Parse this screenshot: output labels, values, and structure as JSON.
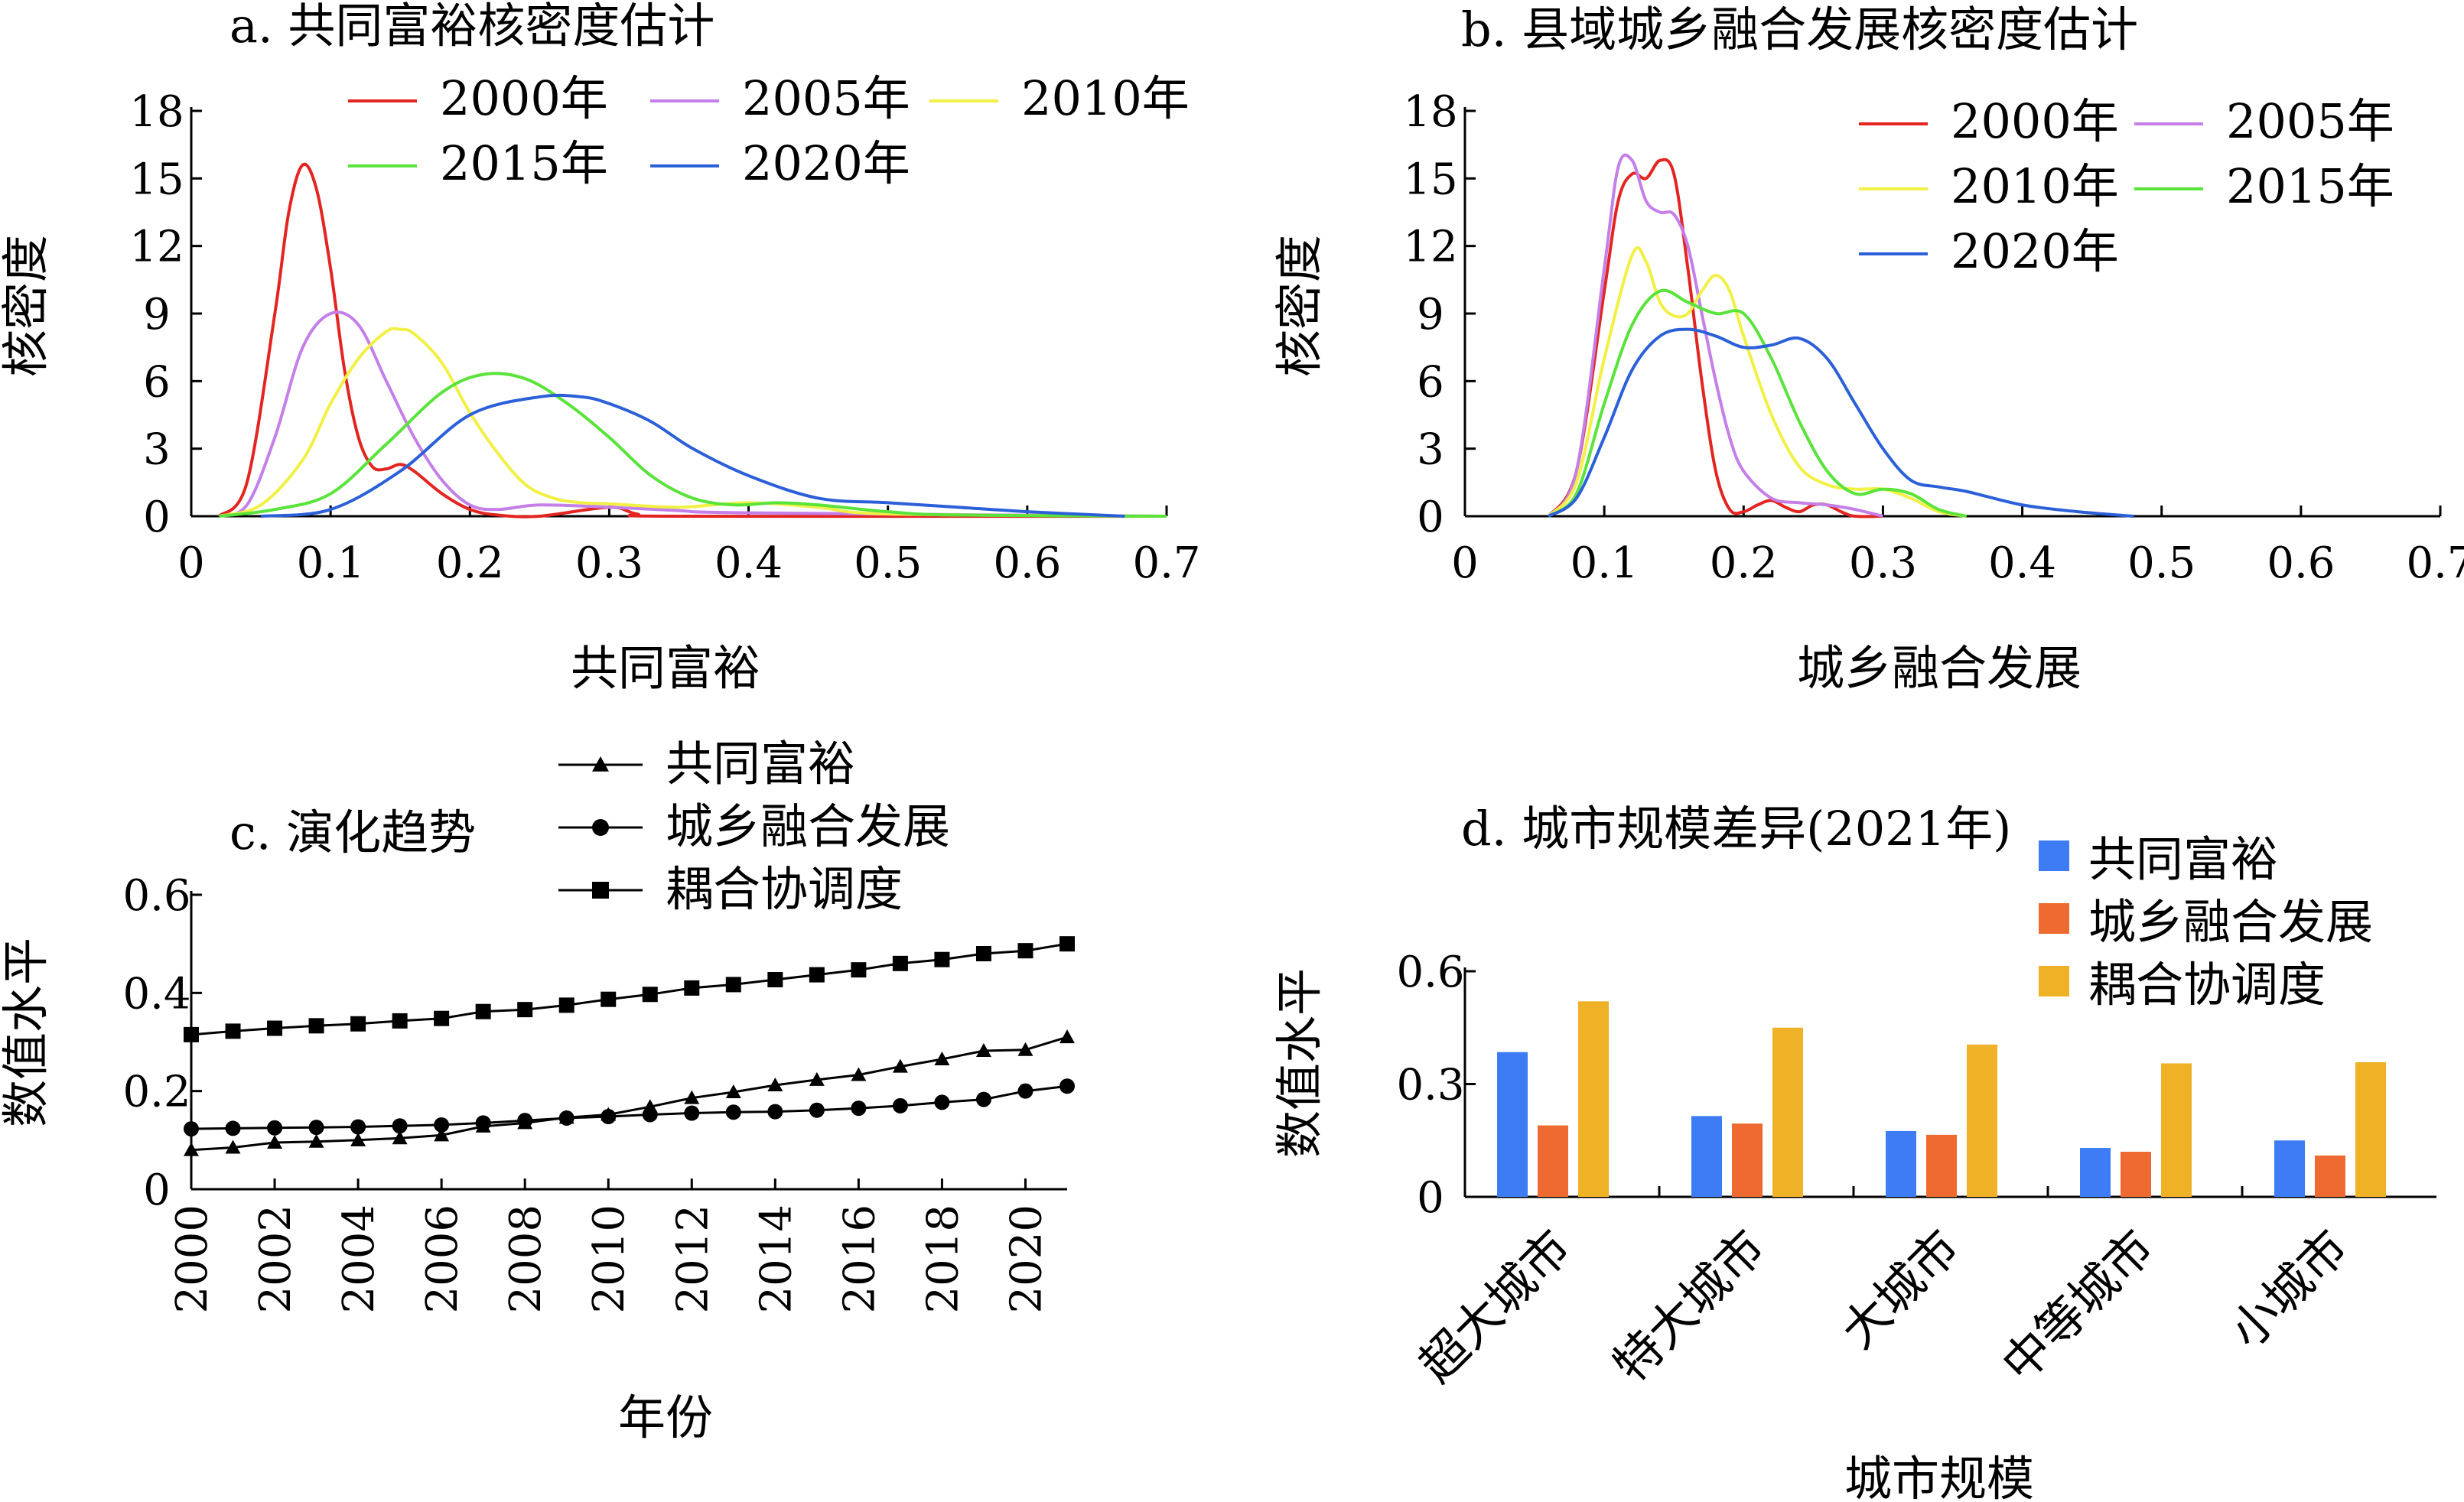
{
  "chart_data": [
    {
      "type": "line",
      "title": "a. 共同富裕核密度估计",
      "xlabel": "共同富裕",
      "ylabel": "核密度",
      "xlim": [
        0,
        0.7
      ],
      "ylim": [
        0,
        18
      ],
      "xticks": [
        0,
        0.1,
        0.2,
        0.3,
        0.4,
        0.5,
        0.6,
        0.7
      ],
      "yticks": [
        0,
        3,
        6,
        9,
        12,
        15,
        18
      ],
      "legend_position": "top",
      "series": [
        {
          "name": "2000年",
          "color": "#e32522",
          "x": [
            0.02,
            0.04,
            0.06,
            0.07,
            0.08,
            0.09,
            0.1,
            0.11,
            0.12,
            0.13,
            0.14,
            0.15,
            0.16,
            0.18,
            0.2,
            0.22,
            0.25,
            0.3,
            0.32,
            0.35,
            0.7
          ],
          "y": [
            0,
            1.5,
            9,
            13.5,
            15.6,
            14.5,
            11,
            6.5,
            3.5,
            2.2,
            2.1,
            2.3,
            2,
            1,
            0.3,
            0.05,
            0,
            0.4,
            0.1,
            0,
            0
          ]
        },
        {
          "name": "2005年",
          "color": "#c47fe8",
          "x": [
            0.02,
            0.04,
            0.06,
            0.08,
            0.1,
            0.12,
            0.14,
            0.16,
            0.18,
            0.2,
            0.22,
            0.25,
            0.3,
            0.35,
            0.4,
            0.7
          ],
          "y": [
            0,
            0.5,
            3.5,
            7.5,
            9,
            8.5,
            6,
            3.5,
            1.6,
            0.5,
            0.3,
            0.5,
            0.4,
            0.25,
            0.15,
            0
          ]
        },
        {
          "name": "2010年",
          "color": "#f1f044",
          "x": [
            0.02,
            0.05,
            0.08,
            0.1,
            0.12,
            0.14,
            0.15,
            0.16,
            0.18,
            0.2,
            0.22,
            0.24,
            0.26,
            0.28,
            0.3,
            0.35,
            0.4,
            0.45,
            0.5,
            0.7
          ],
          "y": [
            0,
            0.5,
            2.5,
            5,
            7,
            8.2,
            8.3,
            8.1,
            6.8,
            4.6,
            2.8,
            1.4,
            0.8,
            0.6,
            0.55,
            0.4,
            0.6,
            0.4,
            0.1,
            0
          ]
        },
        {
          "name": "2015年",
          "color": "#59e33b",
          "x": [
            0.02,
            0.06,
            0.1,
            0.14,
            0.18,
            0.21,
            0.24,
            0.27,
            0.3,
            0.33,
            0.36,
            0.39,
            0.42,
            0.45,
            0.5,
            0.55,
            0.7
          ],
          "y": [
            0,
            0.3,
            1,
            3.2,
            5.5,
            6.3,
            6.1,
            5,
            3.5,
            1.8,
            0.8,
            0.5,
            0.6,
            0.5,
            0.2,
            0.05,
            0
          ]
        },
        {
          "name": "2020年",
          "color": "#2c60d8",
          "x": [
            0.05,
            0.1,
            0.15,
            0.2,
            0.25,
            0.28,
            0.3,
            0.33,
            0.36,
            0.4,
            0.45,
            0.5,
            0.55,
            0.6,
            0.67
          ],
          "y": [
            0,
            0.3,
            2,
            4.5,
            5.3,
            5.3,
            5,
            4.2,
            3,
            1.8,
            0.8,
            0.6,
            0.4,
            0.2,
            0
          ]
        }
      ]
    },
    {
      "type": "line",
      "title": "b. 县域城乡融合发展核密度估计",
      "xlabel": "城乡融合发展",
      "ylabel": "核密度",
      "xlim": [
        0,
        0.7
      ],
      "ylim": [
        0,
        18
      ],
      "xticks": [
        0,
        0.1,
        0.2,
        0.3,
        0.4,
        0.5,
        0.6,
        0.7
      ],
      "yticks": [
        0,
        3,
        6,
        9,
        12,
        15,
        18
      ],
      "legend_position": "top-right",
      "series": [
        {
          "name": "2000年",
          "color": "#e32522",
          "x": [
            0.06,
            0.08,
            0.1,
            0.11,
            0.12,
            0.13,
            0.14,
            0.15,
            0.16,
            0.17,
            0.18,
            0.19,
            0.2,
            0.21,
            0.22,
            0.23,
            0.24,
            0.25,
            0.26,
            0.27,
            0.28,
            0.3
          ],
          "y": [
            0,
            2,
            10,
            14,
            15.2,
            15,
            15.8,
            15.2,
            11,
            6,
            2,
            0.3,
            0.2,
            0.5,
            0.7,
            0.4,
            0.2,
            0.5,
            0.5,
            0.2,
            0,
            0
          ]
        },
        {
          "name": "2005年",
          "color": "#c47fe8",
          "x": [
            0.06,
            0.08,
            0.1,
            0.11,
            0.12,
            0.13,
            0.14,
            0.15,
            0.16,
            0.17,
            0.18,
            0.19,
            0.2,
            0.22,
            0.24,
            0.26,
            0.28,
            0.3
          ],
          "y": [
            0,
            2,
            11,
            15.5,
            15.8,
            14,
            13.5,
            13.4,
            12,
            9,
            6,
            3.5,
            2,
            0.8,
            0.6,
            0.5,
            0.3,
            0
          ]
        },
        {
          "name": "2010年",
          "color": "#f1f044",
          "x": [
            0.06,
            0.08,
            0.1,
            0.12,
            0.13,
            0.14,
            0.15,
            0.16,
            0.17,
            0.18,
            0.19,
            0.2,
            0.22,
            0.24,
            0.26,
            0.28,
            0.3,
            0.32,
            0.34,
            0.36
          ],
          "y": [
            0,
            1.5,
            7,
            11.6,
            11.3,
            9.5,
            8.9,
            9,
            10,
            10.7,
            10,
            8,
            4.5,
            2.2,
            1.4,
            1.2,
            1.2,
            0.8,
            0.2,
            0
          ]
        },
        {
          "name": "2015年",
          "color": "#59e33b",
          "x": [
            0.06,
            0.08,
            0.1,
            0.12,
            0.14,
            0.16,
            0.18,
            0.2,
            0.22,
            0.24,
            0.26,
            0.28,
            0.3,
            0.32,
            0.34,
            0.36
          ],
          "y": [
            0,
            1,
            5,
            8.5,
            10,
            9.5,
            9,
            9,
            7,
            4.2,
            2,
            1,
            1.2,
            1,
            0.3,
            0
          ]
        },
        {
          "name": "2020年",
          "color": "#2c60d8",
          "x": [
            0.06,
            0.08,
            0.1,
            0.12,
            0.14,
            0.16,
            0.18,
            0.2,
            0.22,
            0.24,
            0.26,
            0.28,
            0.3,
            0.32,
            0.34,
            0.36,
            0.4,
            0.44,
            0.48
          ],
          "y": [
            0,
            0.8,
            3.5,
            6.5,
            8,
            8.3,
            8,
            7.5,
            7.6,
            7.9,
            7,
            5,
            3,
            1.6,
            1.3,
            1.1,
            0.5,
            0.2,
            0
          ]
        }
      ]
    },
    {
      "type": "line",
      "title": "c. 演化趋势",
      "xlabel": "年份",
      "ylabel": "数值水平",
      "xlim": [
        2000,
        2021
      ],
      "ylim": [
        0,
        0.6
      ],
      "xticks": [
        2000,
        2002,
        2004,
        2006,
        2008,
        2010,
        2012,
        2014,
        2016,
        2018,
        2020
      ],
      "yticks": [
        0,
        0.2,
        0.4,
        0.6
      ],
      "legend_position": "top",
      "x": [
        2000,
        2001,
        2002,
        2003,
        2004,
        2005,
        2006,
        2007,
        2008,
        2009,
        2010,
        2011,
        2012,
        2013,
        2014,
        2015,
        2016,
        2017,
        2018,
        2019,
        2020,
        2021
      ],
      "series": [
        {
          "name": "共同富裕",
          "marker": "triangle",
          "color": "#000000",
          "values": [
            0.08,
            0.085,
            0.095,
            0.097,
            0.1,
            0.104,
            0.11,
            0.128,
            0.135,
            0.146,
            0.152,
            0.168,
            0.186,
            0.198,
            0.212,
            0.223,
            0.233,
            0.25,
            0.265,
            0.282,
            0.284,
            0.31
          ]
        },
        {
          "name": "城乡融合发展",
          "marker": "circle",
          "color": "#000000",
          "values": [
            0.123,
            0.124,
            0.125,
            0.126,
            0.127,
            0.129,
            0.131,
            0.135,
            0.14,
            0.145,
            0.148,
            0.152,
            0.155,
            0.157,
            0.158,
            0.161,
            0.165,
            0.17,
            0.177,
            0.183,
            0.2,
            0.21
          ]
        },
        {
          "name": "耦合协调度",
          "marker": "square",
          "color": "#000000",
          "values": [
            0.315,
            0.322,
            0.328,
            0.333,
            0.337,
            0.343,
            0.348,
            0.362,
            0.366,
            0.375,
            0.387,
            0.397,
            0.41,
            0.417,
            0.427,
            0.437,
            0.447,
            0.46,
            0.468,
            0.48,
            0.486,
            0.5
          ]
        }
      ]
    },
    {
      "type": "bar",
      "title": "d. 城市规模差异(2021年)",
      "xlabel": "城市规模",
      "ylabel": "数值水平",
      "ylim": [
        0,
        0.6
      ],
      "yticks": [
        0,
        0.3,
        0.6
      ],
      "legend_position": "top-right",
      "categories": [
        "超大城市",
        "特大城市",
        "大城市",
        "中等城市",
        "小城市"
      ],
      "series": [
        {
          "name": "共同富裕",
          "color": "#3d7cf5",
          "values": [
            0.385,
            0.215,
            0.175,
            0.13,
            0.15
          ]
        },
        {
          "name": "城乡融合发展",
          "color": "#ef6a31",
          "values": [
            0.19,
            0.195,
            0.165,
            0.12,
            0.11
          ]
        },
        {
          "name": "耦合协调度",
          "color": "#efb126",
          "values": [
            0.52,
            0.45,
            0.405,
            0.355,
            0.358
          ]
        }
      ]
    }
  ]
}
